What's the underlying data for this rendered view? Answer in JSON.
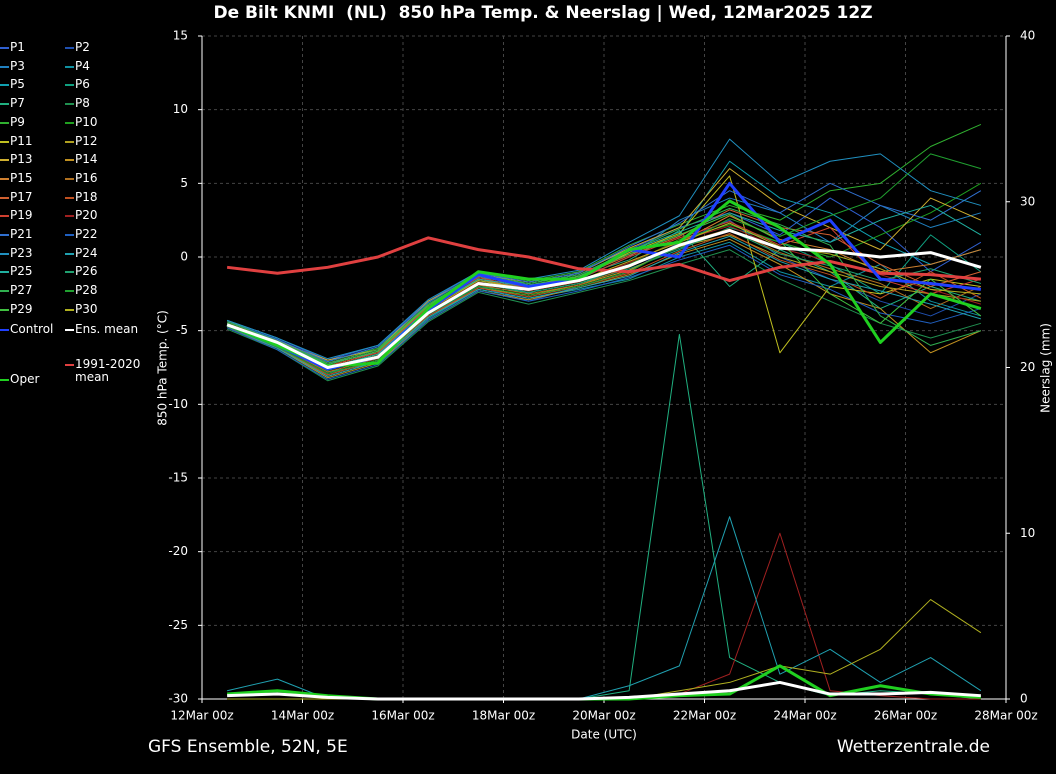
{
  "chart_data": {
    "type": "line",
    "title": "De Bilt KNMI  (NL)  850 hPa Temp. & Neerslag | Wed, 12Mar2025 12Z",
    "xlabel": "Date (UTC)",
    "ylabel": "850 hPa Temp. (°C)",
    "y2label": "Neerslag (mm)",
    "footer_left": "GFS Ensemble, 52N, 5E",
    "footer_right": "Wetterzentrale.de",
    "grid": true,
    "xlim": [
      0,
      384
    ],
    "xticks": [
      {
        "value": 0,
        "label": "12Mar 00z"
      },
      {
        "value": 48,
        "label": "14Mar 00z"
      },
      {
        "value": 96,
        "label": "16Mar 00z"
      },
      {
        "value": 144,
        "label": "18Mar 00z"
      },
      {
        "value": 192,
        "label": "20Mar 00z"
      },
      {
        "value": 240,
        "label": "22Mar 00z"
      },
      {
        "value": 288,
        "label": "24Mar 00z"
      },
      {
        "value": 336,
        "label": "26Mar 00z"
      },
      {
        "value": 384,
        "label": "28Mar 00z"
      }
    ],
    "ylim": [
      -30,
      15
    ],
    "yticks": [
      -30,
      -25,
      -20,
      -15,
      -10,
      -5,
      0,
      5,
      10,
      15
    ],
    "y2lim": [
      0,
      40
    ],
    "y2ticks": [
      0,
      10,
      20,
      30,
      40
    ],
    "x": [
      12,
      36,
      60,
      84,
      108,
      132,
      156,
      180,
      204,
      228,
      252,
      276,
      300,
      324,
      348,
      372
    ],
    "series": [
      {
        "name": "P1",
        "color": "#3060d0",
        "values": [
          -4.3,
          -5.5,
          -7.0,
          -6.0,
          -3.0,
          -1.0,
          -2.5,
          -1.0,
          0.5,
          2.0,
          3.0,
          1.5,
          4.0,
          2.0,
          -1.0,
          1.0
        ]
      },
      {
        "name": "P2",
        "color": "#2050b0",
        "values": [
          -4.8,
          -6.2,
          -8.0,
          -7.0,
          -4.0,
          -2.0,
          -3.0,
          -2.0,
          -1.0,
          1.0,
          2.5,
          0.0,
          -1.5,
          -3.0,
          -4.0,
          -2.5
        ]
      },
      {
        "name": "P3",
        "color": "#2080c0",
        "values": [
          -4.5,
          -5.8,
          -7.2,
          -6.5,
          -3.5,
          -1.5,
          -2.0,
          -1.5,
          0.0,
          2.5,
          4.0,
          3.0,
          1.0,
          3.5,
          2.0,
          3.0
        ]
      },
      {
        "name": "P4",
        "color": "#1090a0",
        "values": [
          -4.7,
          -6.0,
          -7.8,
          -7.2,
          -4.2,
          -2.2,
          -2.8,
          -2.2,
          -1.5,
          0.0,
          1.0,
          -1.0,
          -2.0,
          -0.5,
          -3.0,
          -4.0
        ]
      },
      {
        "name": "P5",
        "color": "#10a0b0",
        "values": [
          -4.4,
          -5.6,
          -7.3,
          -6.4,
          -3.2,
          -1.4,
          -1.8,
          -1.2,
          0.2,
          1.5,
          6.5,
          4.0,
          3.0,
          1.0,
          -0.5,
          0.5
        ]
      },
      {
        "name": "P6",
        "color": "#10a080",
        "values": [
          -4.6,
          -6.1,
          -7.9,
          -7.0,
          -3.9,
          -2.0,
          -2.4,
          -1.8,
          -0.8,
          0.5,
          2.0,
          1.0,
          -0.5,
          -2.5,
          1.5,
          -1.0
        ]
      },
      {
        "name": "P7",
        "color": "#20b080",
        "values": [
          -4.5,
          -5.9,
          -7.6,
          -6.6,
          -3.4,
          -1.6,
          -2.1,
          -1.3,
          -0.2,
          1.8,
          -2.0,
          0.5,
          -1.0,
          -3.5,
          -2.0,
          -3.0
        ],
        "precip": [
          0,
          0,
          0,
          0,
          0,
          0,
          0,
          0,
          0.5,
          22,
          2.5,
          1,
          0.2,
          0.5,
          0.3,
          0
        ]
      },
      {
        "name": "P8",
        "color": "#209050",
        "values": [
          -4.9,
          -6.3,
          -8.4,
          -7.4,
          -4.4,
          -2.4,
          -3.2,
          -2.4,
          -1.6,
          -0.5,
          0.5,
          -1.5,
          -3.0,
          -4.5,
          -5.5,
          -4.5
        ]
      },
      {
        "name": "P9",
        "color": "#30b030",
        "values": [
          -4.3,
          -5.7,
          -7.1,
          -6.2,
          -3.1,
          -1.1,
          -1.6,
          -1.0,
          0.8,
          2.2,
          3.5,
          2.5,
          4.5,
          5.0,
          7.5,
          9.0
        ]
      },
      {
        "name": "P10",
        "color": "#20a020",
        "values": [
          -4.6,
          -5.9,
          -7.7,
          -6.8,
          -3.7,
          -1.7,
          -2.3,
          -1.7,
          -0.5,
          1.2,
          2.2,
          1.0,
          0.0,
          1.5,
          3.0,
          5.0
        ]
      },
      {
        "name": "P11",
        "color": "#c0c020",
        "values": [
          -4.5,
          -5.8,
          -7.4,
          -6.5,
          -3.3,
          -1.3,
          -1.9,
          -1.4,
          0.3,
          1.6,
          5.5,
          -6.5,
          -2.0,
          -2.5,
          -1.5,
          -2.0
        ]
      },
      {
        "name": "P12",
        "color": "#b0a020",
        "values": [
          -4.7,
          -6.1,
          -8.1,
          -7.1,
          -4.1,
          -2.1,
          -2.6,
          -1.9,
          -0.9,
          0.7,
          1.5,
          0.0,
          -1.0,
          -2.0,
          -2.5,
          -3.0
        ]
      },
      {
        "name": "P13",
        "color": "#d0b030",
        "values": [
          -4.4,
          -5.7,
          -7.0,
          -6.3,
          -3.0,
          -1.2,
          -1.7,
          -1.1,
          0.6,
          2.0,
          6.0,
          3.5,
          2.0,
          0.5,
          4.0,
          2.5
        ]
      },
      {
        "name": "P14",
        "color": "#c09020",
        "values": [
          -4.8,
          -6.2,
          -8.2,
          -7.2,
          -4.3,
          -2.3,
          -2.9,
          -2.1,
          -1.2,
          0.2,
          1.2,
          -0.5,
          -2.5,
          -3.5,
          -6.5,
          -5.0
        ]
      },
      {
        "name": "P15",
        "color": "#d08030",
        "values": [
          -4.5,
          -5.9,
          -7.5,
          -6.6,
          -3.5,
          -1.5,
          -2.2,
          -1.6,
          -0.3,
          1.0,
          2.8,
          1.2,
          0.5,
          -1.0,
          -0.5,
          0.5
        ]
      },
      {
        "name": "P16",
        "color": "#b07020",
        "values": [
          -4.6,
          -6.0,
          -7.8,
          -6.9,
          -3.8,
          -1.9,
          -2.5,
          -1.9,
          -0.7,
          0.9,
          1.9,
          0.3,
          -0.8,
          -1.8,
          -3.5,
          -2.0
        ]
      },
      {
        "name": "P17",
        "color": "#d06030",
        "values": [
          -4.4,
          -5.7,
          -7.2,
          -6.3,
          -3.3,
          -1.3,
          -2.0,
          -1.3,
          0.1,
          1.4,
          3.2,
          2.0,
          1.5,
          -0.5,
          -2.0,
          -1.0
        ]
      },
      {
        "name": "P18",
        "color": "#c05020",
        "values": [
          -4.7,
          -6.1,
          -8.0,
          -7.0,
          -4.0,
          -2.1,
          -2.7,
          -2.0,
          -1.1,
          0.4,
          1.6,
          -0.2,
          -1.2,
          -2.8,
          -1.0,
          -2.8
        ]
      },
      {
        "name": "P19",
        "color": "#d04030",
        "values": [
          -4.5,
          -5.8,
          -7.4,
          -6.5,
          -3.4,
          -1.4,
          -2.1,
          -1.5,
          0.0,
          1.3,
          2.4,
          0.8,
          2.0,
          -1.5,
          -2.5,
          -1.5
        ]
      },
      {
        "name": "P20",
        "color": "#a02020",
        "values": [
          -4.6,
          -6.0,
          -7.6,
          -6.8,
          -3.6,
          -1.7,
          -2.3,
          -1.7,
          -0.4,
          1.1,
          2.1,
          0.6,
          -0.3,
          -1.2,
          -2.2,
          -3.2
        ],
        "precip": [
          0,
          0,
          0,
          0,
          0,
          0,
          0,
          0,
          0,
          0.3,
          1.5,
          10,
          0.5,
          0.2,
          0,
          0
        ]
      },
      {
        "name": "P21",
        "color": "#3070d0",
        "values": [
          -4.4,
          -5.6,
          -7.1,
          -6.1,
          -3.1,
          -1.1,
          -1.7,
          -1.1,
          0.7,
          2.3,
          4.5,
          3.0,
          5.0,
          3.5,
          2.5,
          4.5
        ]
      },
      {
        "name": "P22",
        "color": "#2060c0",
        "values": [
          -4.8,
          -6.3,
          -8.3,
          -7.3,
          -4.3,
          -2.3,
          -3.0,
          -2.3,
          -1.4,
          -0.2,
          0.8,
          -1.2,
          -2.2,
          -3.8,
          -4.5,
          -3.5
        ]
      },
      {
        "name": "P23",
        "color": "#2090c0",
        "values": [
          -4.3,
          -5.5,
          -6.9,
          -6.0,
          -2.9,
          -1.0,
          -1.5,
          -0.9,
          1.0,
          2.8,
          8.0,
          5.0,
          6.5,
          7.0,
          4.5,
          3.5
        ]
      },
      {
        "name": "P24",
        "color": "#20a0b0",
        "values": [
          -4.7,
          -6.2,
          -8.1,
          -7.1,
          -4.1,
          -2.2,
          -2.8,
          -2.1,
          -1.3,
          0.3,
          1.4,
          -0.3,
          -1.5,
          -2.3,
          -3.2,
          -4.2
        ],
        "precip": [
          0.5,
          1.2,
          0,
          0,
          0,
          0,
          0,
          0,
          0.8,
          2,
          11,
          1.5,
          3,
          1,
          2.5,
          0.5
        ]
      },
      {
        "name": "P25",
        "color": "#20b0a0",
        "values": [
          -4.5,
          -5.9,
          -7.5,
          -6.6,
          -3.5,
          -1.5,
          -2.0,
          -1.4,
          0.4,
          1.7,
          3.0,
          1.8,
          1.0,
          2.5,
          3.5,
          1.5
        ]
      },
      {
        "name": "P26",
        "color": "#20a070",
        "values": [
          -4.6,
          -6.0,
          -7.7,
          -6.7,
          -3.7,
          -1.8,
          -2.4,
          -1.8,
          -0.6,
          0.6,
          1.8,
          0.2,
          -0.6,
          -1.6,
          -0.8,
          -1.8
        ]
      },
      {
        "name": "P27",
        "color": "#30b050",
        "values": [
          -4.4,
          -5.7,
          -7.2,
          -6.3,
          -3.2,
          -1.2,
          -1.8,
          -1.2,
          0.4,
          1.9,
          3.3,
          2.2,
          0.8,
          -4.0,
          -6.0,
          -5.0
        ]
      },
      {
        "name": "P28",
        "color": "#20a030",
        "values": [
          -4.7,
          -6.1,
          -7.9,
          -7.0,
          -3.9,
          -2.0,
          -2.6,
          -2.0,
          -1.0,
          0.8,
          2.6,
          1.4,
          2.8,
          4.0,
          7.0,
          6.0
        ]
      },
      {
        "name": "P29",
        "color": "#40c040",
        "values": [
          -4.5,
          -5.8,
          -7.3,
          -6.4,
          -3.3,
          -1.3,
          -1.9,
          -1.3,
          0.2,
          1.5,
          2.9,
          1.1,
          -2.5,
          -4.5,
          -1.5,
          -4.0
        ]
      },
      {
        "name": "P30",
        "color": "#b0b020",
        "values": [
          -4.6,
          -6.0,
          -7.6,
          -6.7,
          -3.6,
          -1.6,
          -2.2,
          -1.6,
          -0.3,
          1.0,
          2.3,
          0.7,
          0.2,
          -0.8,
          -2.2,
          -2.5
        ],
        "precip": [
          0,
          0,
          0,
          0,
          0,
          0,
          0,
          0,
          0,
          0.5,
          1,
          2,
          1.5,
          3,
          6,
          4
        ]
      },
      {
        "name": "Control",
        "color": "#2040ff",
        "values": [
          -4.6,
          -6.0,
          -7.6,
          -6.8,
          -3.6,
          -1.2,
          -2.0,
          -1.5,
          0.5,
          0.0,
          5.0,
          1.0,
          2.5,
          -1.5,
          -1.8,
          -2.2
        ]
      },
      {
        "name": "Ens. mean",
        "color": "#ffffff",
        "values": [
          -4.6,
          -5.8,
          -7.5,
          -6.8,
          -3.8,
          -1.8,
          -2.2,
          -1.6,
          -0.6,
          0.8,
          1.8,
          0.6,
          0.4,
          0.0,
          0.3,
          -0.7
        ],
        "precip": [
          0.2,
          0.3,
          0.1,
          0,
          0,
          0,
          0,
          0,
          0.1,
          0.3,
          0.5,
          1.0,
          0.3,
          0.3,
          0.4,
          0.2
        ]
      },
      {
        "name": "1991-2020 mean",
        "color": "#e04040",
        "values": [
          -0.7,
          -1.1,
          -0.7,
          0.0,
          1.3,
          0.5,
          0.0,
          -0.8,
          -1.0,
          -0.5,
          -1.6,
          -0.7,
          -0.3,
          -1.1,
          -1.2,
          -1.5
        ]
      },
      {
        "name": "Oper",
        "color": "#20d020",
        "values": [
          -4.6,
          -6.0,
          -7.4,
          -7.2,
          -3.5,
          -1.0,
          -1.5,
          -1.5,
          0.5,
          1.0,
          3.8,
          2.0,
          -0.5,
          -5.8,
          -2.5,
          -3.5
        ],
        "precip": [
          0.3,
          0.5,
          0.2,
          0,
          0,
          0,
          0,
          0,
          0,
          0.2,
          0.3,
          2.0,
          0.2,
          0.8,
          0.3,
          0.1
        ]
      }
    ]
  }
}
